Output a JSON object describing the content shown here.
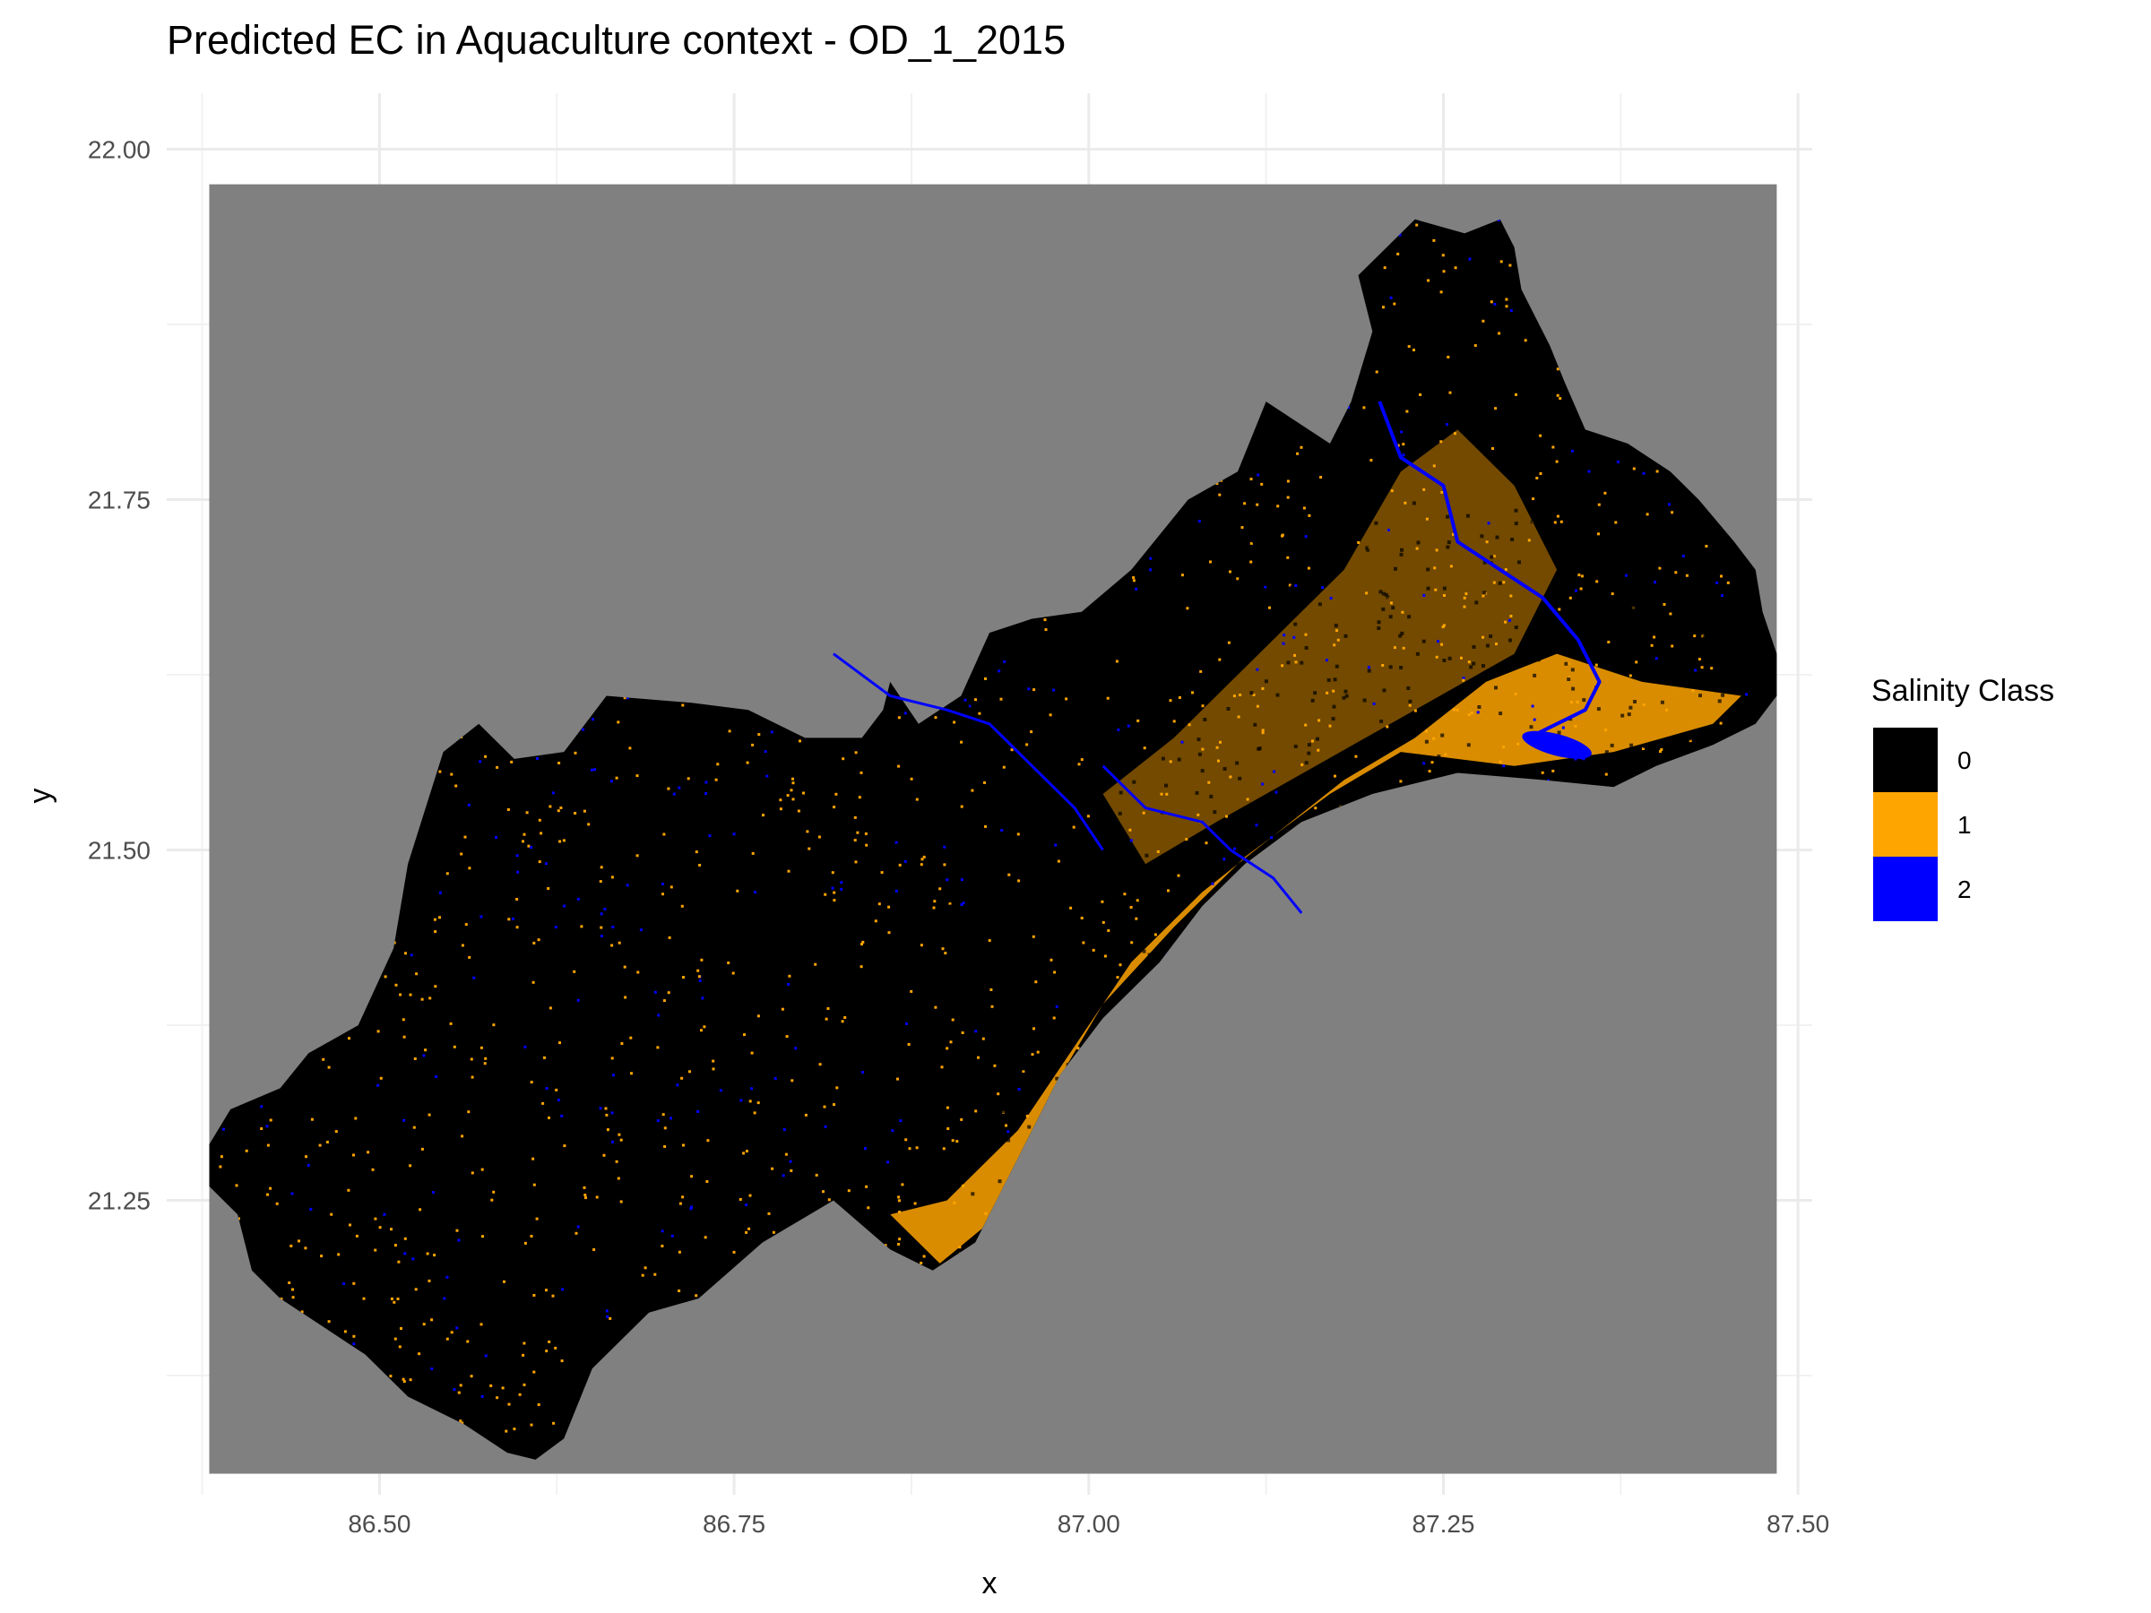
{
  "chart_data": {
    "type": "heatmap",
    "title": "Predicted EC in Aquaculture context - OD_1_2015",
    "xlabel": "x",
    "ylabel": "y",
    "xlim": [
      86.35,
      87.51
    ],
    "ylim": [
      21.04,
      22.04
    ],
    "raster_extent": {
      "x": [
        86.38,
        87.485
      ],
      "y": [
        21.055,
        21.975
      ]
    },
    "x_ticks": [
      "86.50",
      "86.75",
      "87.00",
      "87.25",
      "87.50"
    ],
    "x_tick_values": [
      86.5,
      86.75,
      87.0,
      87.25,
      87.5
    ],
    "y_ticks": [
      "21.25",
      "21.50",
      "21.75",
      "22.00"
    ],
    "y_tick_values": [
      21.25,
      21.5,
      21.75,
      22.0
    ],
    "grid": true,
    "background_color": "#808080",
    "legend": {
      "title": "Salinity Class",
      "position": "right",
      "entries": [
        {
          "label": "0",
          "color": "#000000"
        },
        {
          "label": "1",
          "color": "#FFA500"
        },
        {
          "label": "2",
          "color": "#0000FF"
        }
      ]
    },
    "outline": [
      [
        86.38,
        21.29
      ],
      [
        86.395,
        21.315
      ],
      [
        86.43,
        21.33
      ],
      [
        86.45,
        21.355
      ],
      [
        86.485,
        21.375
      ],
      [
        86.51,
        21.43
      ],
      [
        86.52,
        21.49
      ],
      [
        86.545,
        21.57
      ],
      [
        86.57,
        21.59
      ],
      [
        86.595,
        21.565
      ],
      [
        86.63,
        21.57
      ],
      [
        86.66,
        21.61
      ],
      [
        86.72,
        21.605
      ],
      [
        86.76,
        21.6
      ],
      [
        86.8,
        21.58
      ],
      [
        86.84,
        21.58
      ],
      [
        86.855,
        21.6
      ],
      [
        86.86,
        21.62
      ],
      [
        86.88,
        21.59
      ],
      [
        86.91,
        21.61
      ],
      [
        86.93,
        21.655
      ],
      [
        86.96,
        21.665
      ],
      [
        86.995,
        21.67
      ],
      [
        87.03,
        21.7
      ],
      [
        87.07,
        21.75
      ],
      [
        87.105,
        21.77
      ],
      [
        87.125,
        21.82
      ],
      [
        87.17,
        21.79
      ],
      [
        87.185,
        21.82
      ],
      [
        87.2,
        21.87
      ],
      [
        87.19,
        21.91
      ],
      [
        87.21,
        21.93
      ],
      [
        87.23,
        21.95
      ],
      [
        87.265,
        21.94
      ],
      [
        87.29,
        21.95
      ],
      [
        87.3,
        21.93
      ],
      [
        87.305,
        21.9
      ],
      [
        87.325,
        21.86
      ],
      [
        87.335,
        21.835
      ],
      [
        87.35,
        21.8
      ],
      [
        87.38,
        21.79
      ],
      [
        87.41,
        21.77
      ],
      [
        87.43,
        21.75
      ],
      [
        87.455,
        21.72
      ],
      [
        87.47,
        21.7
      ],
      [
        87.475,
        21.67
      ],
      [
        87.485,
        21.64
      ],
      [
        87.485,
        21.61
      ],
      [
        87.47,
        21.59
      ],
      [
        87.44,
        21.575
      ],
      [
        87.4,
        21.56
      ],
      [
        87.37,
        21.545
      ],
      [
        87.32,
        21.55
      ],
      [
        87.26,
        21.555
      ],
      [
        87.2,
        21.54
      ],
      [
        87.15,
        21.52
      ],
      [
        87.11,
        21.49
      ],
      [
        87.08,
        21.46
      ],
      [
        87.05,
        21.42
      ],
      [
        87.01,
        21.38
      ],
      [
        86.98,
        21.34
      ],
      [
        86.96,
        21.3
      ],
      [
        86.94,
        21.26
      ],
      [
        86.92,
        21.22
      ],
      [
        86.89,
        21.2
      ],
      [
        86.86,
        21.215
      ],
      [
        86.82,
        21.25
      ],
      [
        86.77,
        21.22
      ],
      [
        86.725,
        21.18
      ],
      [
        86.69,
        21.17
      ],
      [
        86.65,
        21.13
      ],
      [
        86.63,
        21.08
      ],
      [
        86.61,
        21.065
      ],
      [
        86.59,
        21.07
      ],
      [
        86.56,
        21.09
      ],
      [
        86.52,
        21.11
      ],
      [
        86.49,
        21.14
      ],
      [
        86.46,
        21.16
      ],
      [
        86.43,
        21.18
      ],
      [
        86.41,
        21.2
      ],
      [
        86.4,
        21.24
      ],
      [
        86.38,
        21.26
      ]
    ],
    "rivers": [
      [
        [
          87.205,
          21.82
        ],
        [
          87.22,
          21.78
        ],
        [
          87.25,
          21.76
        ],
        [
          87.26,
          21.72
        ],
        [
          87.29,
          21.7
        ],
        [
          87.32,
          21.68
        ],
        [
          87.345,
          21.65
        ],
        [
          87.36,
          21.62
        ],
        [
          87.35,
          21.6
        ],
        [
          87.33,
          21.59
        ],
        [
          87.31,
          21.58
        ],
        [
          87.35,
          21.565
        ]
      ],
      [
        [
          87.01,
          21.56
        ],
        [
          87.04,
          21.53
        ],
        [
          87.08,
          21.52
        ],
        [
          87.1,
          21.5
        ],
        [
          87.13,
          21.48
        ],
        [
          87.15,
          21.455
        ]
      ],
      [
        [
          86.82,
          21.64
        ],
        [
          86.86,
          21.61
        ],
        [
          86.9,
          21.6
        ],
        [
          86.93,
          21.59
        ],
        [
          86.96,
          21.56
        ],
        [
          86.99,
          21.53
        ],
        [
          87.01,
          21.5
        ]
      ]
    ],
    "orange_zone": [
      [
        86.86,
        21.24
      ],
      [
        86.9,
        21.25
      ],
      [
        86.95,
        21.3
      ],
      [
        86.99,
        21.36
      ],
      [
        87.03,
        21.42
      ],
      [
        87.08,
        21.47
      ],
      [
        87.13,
        21.51
      ],
      [
        87.18,
        21.55
      ],
      [
        87.23,
        21.58
      ],
      [
        87.28,
        21.62
      ],
      [
        87.33,
        21.64
      ],
      [
        87.39,
        21.62
      ],
      [
        87.46,
        21.61
      ],
      [
        87.44,
        21.59
      ],
      [
        87.37,
        21.57
      ],
      [
        87.3,
        21.56
      ],
      [
        87.22,
        21.57
      ],
      [
        87.17,
        21.54
      ],
      [
        87.11,
        21.495
      ],
      [
        87.06,
        21.445
      ],
      [
        87.01,
        21.39
      ],
      [
        86.975,
        21.33
      ],
      [
        86.95,
        21.28
      ],
      [
        86.925,
        21.23
      ],
      [
        86.895,
        21.205
      ]
    ],
    "orange_inland": [
      [
        87.01,
        21.54
      ],
      [
        87.06,
        21.58
      ],
      [
        87.12,
        21.64
      ],
      [
        87.18,
        21.7
      ],
      [
        87.22,
        21.77
      ],
      [
        87.26,
        21.8
      ],
      [
        87.3,
        21.76
      ],
      [
        87.33,
        21.7
      ],
      [
        87.3,
        21.64
      ],
      [
        87.23,
        21.6
      ],
      [
        87.16,
        21.56
      ],
      [
        87.09,
        21.52
      ],
      [
        87.04,
        21.49
      ]
    ]
  }
}
